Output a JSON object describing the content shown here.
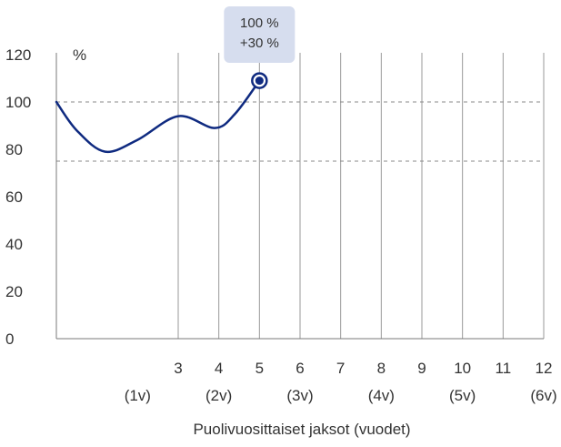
{
  "chart_data": {
    "type": "line",
    "ylabel": "%",
    "xlabel": "Puolivuosittaiset jaksot (vuodet)",
    "ylim": [
      0,
      120
    ],
    "xlim": [
      0,
      12
    ],
    "y_ticks": [
      "0",
      "20",
      "40",
      "60",
      "80",
      "100",
      "120"
    ],
    "x_ticks": [
      {
        "x": 3,
        "label": "3"
      },
      {
        "x": 4,
        "label": "4"
      },
      {
        "x": 5,
        "label": "5"
      },
      {
        "x": 6,
        "label": "6"
      },
      {
        "x": 7,
        "label": "7"
      },
      {
        "x": 8,
        "label": "8"
      },
      {
        "x": 9,
        "label": "9"
      },
      {
        "x": 10,
        "label": "10"
      },
      {
        "x": 11,
        "label": "11"
      },
      {
        "x": 12,
        "label": "12"
      }
    ],
    "year_labels": [
      {
        "x": 2,
        "label": "(1v)"
      },
      {
        "x": 4,
        "label": "(2v)"
      },
      {
        "x": 6,
        "label": "(3v)"
      },
      {
        "x": 8,
        "label": "(4v)"
      },
      {
        "x": 10,
        "label": "(5v)"
      },
      {
        "x": 12,
        "label": "(6v)"
      }
    ],
    "reference_lines": [
      100,
      75
    ],
    "series": [
      {
        "values": [
          {
            "x": 0,
            "y": 100
          },
          {
            "x": 0.5,
            "y": 88
          },
          {
            "x": 1.2,
            "y": 79
          },
          {
            "x": 2,
            "y": 84
          },
          {
            "x": 3,
            "y": 94
          },
          {
            "x": 3.9,
            "y": 89
          },
          {
            "x": 4.4,
            "y": 95
          },
          {
            "x": 5,
            "y": 109
          }
        ],
        "color": "#0f2a80"
      }
    ],
    "highlight": {
      "x": 5,
      "y": 109,
      "lines": [
        "100 %",
        "+30 %"
      ]
    }
  }
}
